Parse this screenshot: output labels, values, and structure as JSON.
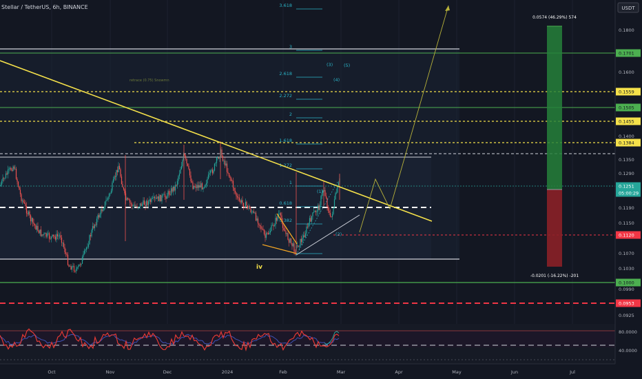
{
  "header": {
    "symbol": "Stellar / TetherUS, 6h, BINANCE",
    "currency": "USDT"
  },
  "chart_data": {
    "type": "candlestick",
    "price_axis": {
      "ylim": [
        0.095,
        0.184
      ],
      "ticks": [
        "0.1800",
        "0.1600",
        "0.1400",
        "0.1350",
        "0.1290",
        "0.1190",
        "0.1150",
        "0.1070",
        "0.1030",
        "0.0990",
        "0.0925"
      ]
    },
    "price_tags": [
      {
        "value": "0.1701",
        "color": "#4caf50",
        "text_color": "#131722"
      },
      {
        "value": "0.1559",
        "color": "#f5e14a",
        "text_color": "#131722"
      },
      {
        "value": "0.1505",
        "color": "#4caf50",
        "text_color": "#131722"
      },
      {
        "value": "0.1455",
        "color": "#f5e14a",
        "text_color": "#131722"
      },
      {
        "value": "0.1384",
        "color": "#f5e14a",
        "text_color": "#131722"
      },
      {
        "value": "0.1251",
        "color": "#26a69a",
        "text_color": "#ffffff"
      },
      {
        "value": "05:00:29",
        "color": "#26a69a",
        "text_color": "#ffffff"
      },
      {
        "value": "0.1120",
        "color": "#f23645",
        "text_color": "#ffffff"
      },
      {
        "value": "0.1000",
        "color": "#4caf50",
        "text_color": "#131722"
      },
      {
        "value": "0.0953",
        "color": "#f23645",
        "text_color": "#ffffff"
      }
    ],
    "time_axis": [
      "Oct",
      "Nov",
      "Dec",
      "2024",
      "Feb",
      "Mar",
      "Apr",
      "May",
      "Jun",
      "Jul"
    ],
    "fib_levels": [
      "3.618",
      "3",
      "2.618",
      "2.272",
      "2",
      "1.618",
      "1.272",
      "1",
      "0.618",
      "0.382"
    ],
    "wave_labels": [
      "(3)",
      "(5)",
      "(4)",
      "(1)",
      "(2)",
      "iv"
    ],
    "annotation": "retrace (0.75) Snowmn",
    "position": {
      "target_label": "0.0574 (46.29%) 574",
      "stop_label": "-0.0201 (-16.22%) -201"
    },
    "rsi_axis": [
      "80.0000",
      "40.0000"
    ],
    "colors": {
      "up": "#26a69a",
      "down": "#ef5350",
      "trend": "#f5e14a",
      "green_level": "#4caf50",
      "red_level": "#f23645",
      "fib": "#2bb5c8"
    }
  }
}
